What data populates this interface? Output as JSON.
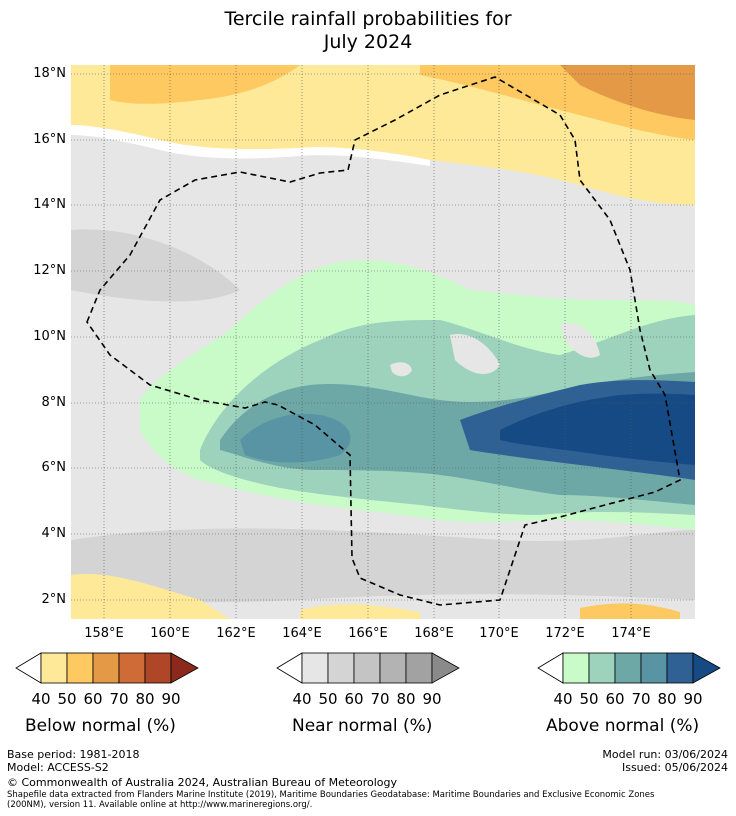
{
  "title_line1": "Tercile rainfall probabilities for",
  "title_line2": "July 2024",
  "lat_labels": [
    "18°N",
    "16°N",
    "14°N",
    "12°N",
    "10°N",
    "8°N",
    "6°N",
    "4°N",
    "2°N"
  ],
  "lon_labels": [
    "158°E",
    "160°E",
    "162°E",
    "164°E",
    "166°E",
    "168°E",
    "170°E",
    "172°E",
    "174°E"
  ],
  "legends": {
    "below": {
      "caption": "Below normal (%)",
      "ticks": [
        "40",
        "50",
        "60",
        "70",
        "80",
        "90"
      ],
      "colors": [
        "#ffffff",
        "#fee999",
        "#fdc960",
        "#e39945",
        "#cf6b37",
        "#ae4627",
        "#8b2a1c"
      ]
    },
    "near": {
      "caption": "Near normal (%)",
      "ticks": [
        "40",
        "50",
        "60",
        "70",
        "80",
        "90"
      ],
      "colors": [
        "#ffffff",
        "#e6e6e6",
        "#d4d4d4",
        "#c4c4c4",
        "#b3b3b3",
        "#a2a2a2",
        "#8a8a8a"
      ]
    },
    "above": {
      "caption": "Above normal (%)",
      "ticks": [
        "40",
        "50",
        "60",
        "70",
        "80",
        "90"
      ],
      "colors": [
        "#ffffff",
        "#c9fbc9",
        "#9dd3bc",
        "#6ea8a6",
        "#5894a3",
        "#2f6195",
        "#164a84"
      ]
    }
  },
  "footer": {
    "base_period": "Base period: 1981-2018",
    "model": "Model: ACCESS-S2",
    "model_run": "Model run: 03/06/2024",
    "issued": "Issued: 05/06/2024",
    "copyright": "© Commonwealth of Australia 2024, Australian Bureau of Meteorology",
    "shapefile1": "Shapefile data extracted from Flanders Marine Institute (2019), Maritime Boundaries Geodatabase: Maritime Boundaries and Exclusive Economic Zones",
    "shapefile2": "(200NM), version 11. Available online at http://www.marineregions.org/."
  }
}
